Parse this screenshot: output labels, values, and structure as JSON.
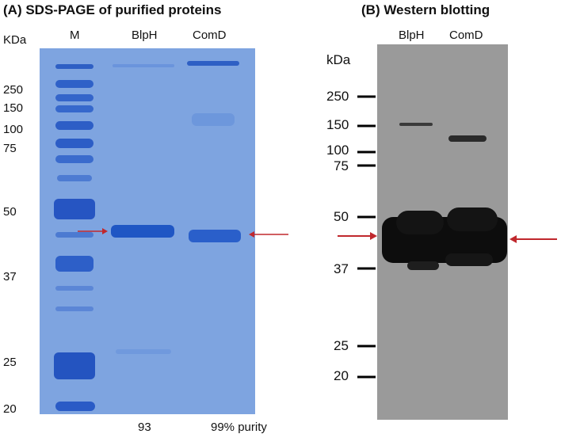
{
  "panel_a": {
    "title": "(A)  SDS-PAGE of purified proteins",
    "unit": "KDa",
    "lanes": [
      "M",
      "BlpH",
      "ComD"
    ],
    "markers": [
      "250",
      "150",
      "100",
      "75",
      "50",
      "37",
      "25",
      "20"
    ],
    "purity": [
      "93",
      "99% purity"
    ]
  },
  "panel_b": {
    "title": "(B)  Western blotting",
    "unit": "kDa",
    "lanes": [
      "BlpH",
      "ComD"
    ],
    "markers": [
      "250",
      "150",
      "100",
      "75",
      "50",
      "37",
      "25",
      "20"
    ]
  },
  "colors": {
    "gel_bg": "#7ea4e0",
    "band_blue": "#1f56c4",
    "blot_bg": "#9a9a9a",
    "arrow_red": "#c0282d"
  }
}
